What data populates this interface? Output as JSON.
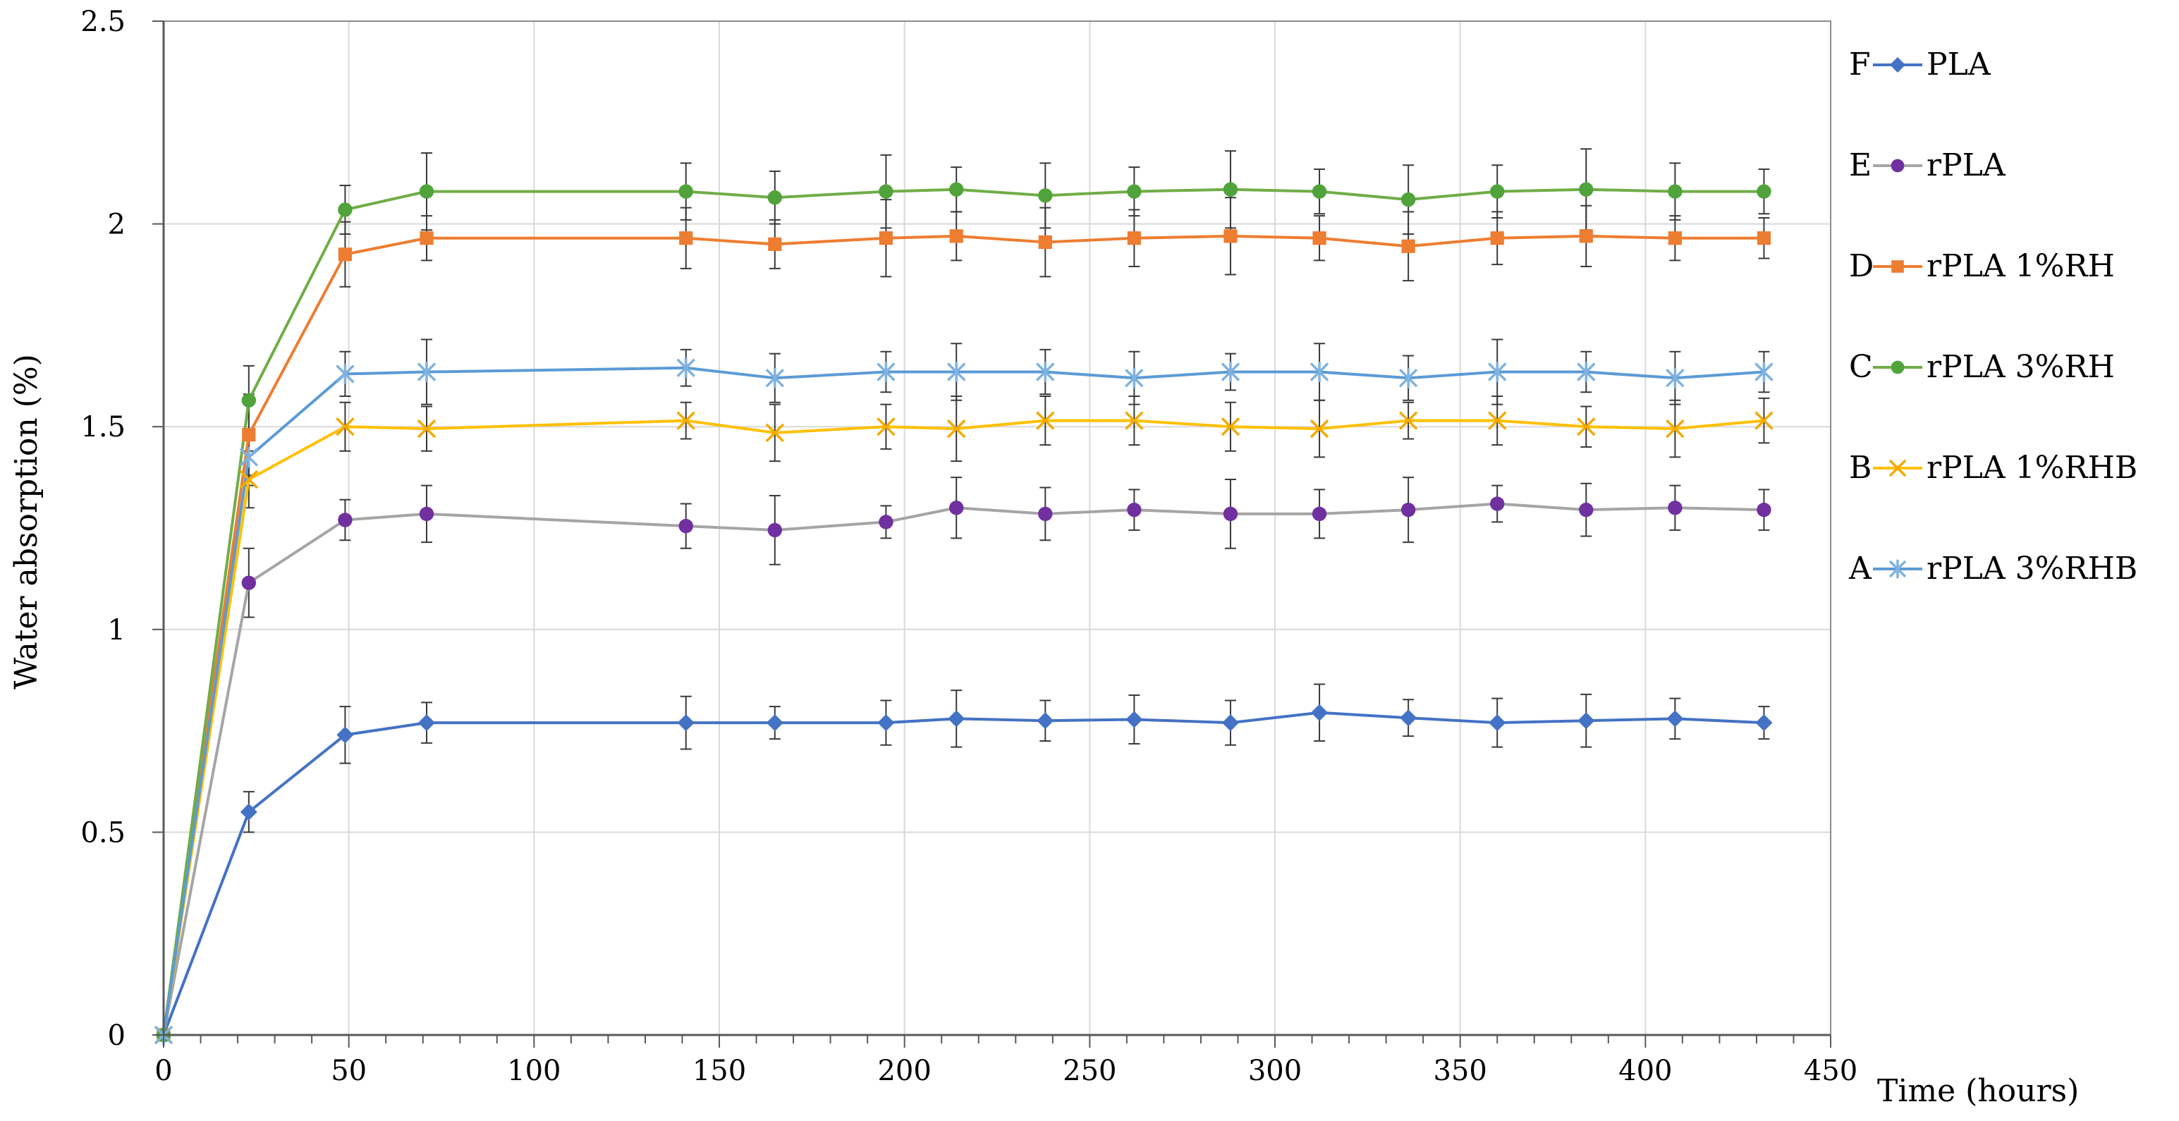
{
  "chart_data": {
    "type": "line",
    "xlabel": "Time (hours)",
    "ylabel": "Water absorption (%)",
    "xlim": [
      0,
      450
    ],
    "ylim": [
      0,
      2.5
    ],
    "x_ticks": [
      0,
      50,
      100,
      150,
      200,
      250,
      300,
      350,
      400,
      450
    ],
    "y_ticks": [
      0,
      0.5,
      1,
      1.5,
      2,
      2.5
    ],
    "y_tick_labels": [
      "0",
      "0.5",
      "1",
      "1.5",
      "2",
      "2.5"
    ],
    "grid": true,
    "legend_position": "right",
    "series": [
      {
        "letter": "F",
        "name": "PLA",
        "color": "#4472C4",
        "marker": "diamond",
        "x": [
          0,
          23,
          49,
          71,
          141,
          165,
          195,
          214,
          238,
          262,
          288,
          312,
          336,
          360,
          384,
          408,
          432
        ],
        "y": [
          0,
          0.55,
          0.74,
          0.77,
          0.77,
          0.77,
          0.77,
          0.78,
          0.775,
          0.778,
          0.77,
          0.795,
          0.782,
          0.77,
          0.775,
          0.78,
          0.77
        ],
        "err": [
          0,
          0.05,
          0.07,
          0.05,
          0.065,
          0.04,
          0.055,
          0.07,
          0.05,
          0.06,
          0.055,
          0.07,
          0.045,
          0.06,
          0.065,
          0.05,
          0.04
        ]
      },
      {
        "letter": "E",
        "name": "rPLA",
        "color": "#A5A5A5",
        "markerColor": "#7030A0",
        "marker": "circle",
        "x": [
          0,
          23,
          49,
          71,
          141,
          165,
          195,
          214,
          238,
          262,
          288,
          312,
          336,
          360,
          384,
          408,
          432
        ],
        "y": [
          0,
          1.115,
          1.27,
          1.285,
          1.255,
          1.245,
          1.265,
          1.3,
          1.285,
          1.295,
          1.285,
          1.285,
          1.295,
          1.31,
          1.295,
          1.3,
          1.295
        ],
        "err": [
          0,
          0.085,
          0.05,
          0.07,
          0.055,
          0.085,
          0.04,
          0.075,
          0.065,
          0.05,
          0.085,
          0.06,
          0.08,
          0.045,
          0.065,
          0.055,
          0.05
        ]
      },
      {
        "letter": "D",
        "name": "rPLA 1%RH",
        "color": "#ED7D31",
        "marker": "square",
        "x": [
          0,
          23,
          49,
          71,
          141,
          165,
          195,
          214,
          238,
          262,
          288,
          312,
          336,
          360,
          384,
          408,
          432
        ],
        "y": [
          0,
          1.48,
          1.925,
          1.965,
          1.965,
          1.95,
          1.965,
          1.97,
          1.955,
          1.965,
          1.97,
          1.965,
          1.945,
          1.965,
          1.97,
          1.965,
          1.965
        ],
        "err": [
          0,
          0.1,
          0.08,
          0.055,
          0.075,
          0.06,
          0.095,
          0.06,
          0.085,
          0.07,
          0.095,
          0.055,
          0.085,
          0.065,
          0.075,
          0.055,
          0.05
        ]
      },
      {
        "letter": "C",
        "name": "rPLA 3%RH",
        "color": "#70AD47",
        "markerColor": "#4FA33A",
        "marker": "circle",
        "x": [
          0,
          23,
          49,
          71,
          141,
          165,
          195,
          214,
          238,
          262,
          288,
          312,
          336,
          360,
          384,
          408,
          432
        ],
        "y": [
          0,
          1.565,
          2.035,
          2.08,
          2.08,
          2.065,
          2.08,
          2.085,
          2.07,
          2.08,
          2.085,
          2.08,
          2.06,
          2.08,
          2.085,
          2.08,
          2.08
        ],
        "err": [
          0,
          0.085,
          0.06,
          0.095,
          0.07,
          0.065,
          0.09,
          0.055,
          0.08,
          0.06,
          0.095,
          0.055,
          0.085,
          0.065,
          0.1,
          0.07,
          0.055
        ]
      },
      {
        "letter": "B",
        "name": "rPLA 1%RHB",
        "color": "#FFC000",
        "markerColor": "#F2A900",
        "marker": "x",
        "x": [
          0,
          23,
          49,
          71,
          141,
          165,
          195,
          214,
          238,
          262,
          288,
          312,
          336,
          360,
          384,
          408,
          432
        ],
        "y": [
          0,
          1.37,
          1.5,
          1.495,
          1.515,
          1.485,
          1.5,
          1.495,
          1.515,
          1.515,
          1.5,
          1.495,
          1.515,
          1.515,
          1.5,
          1.495,
          1.515
        ],
        "err": [
          0,
          0.07,
          0.06,
          0.055,
          0.045,
          0.07,
          0.055,
          0.08,
          0.06,
          0.06,
          0.06,
          0.07,
          0.045,
          0.06,
          0.05,
          0.07,
          0.055
        ]
      },
      {
        "letter": "A",
        "name": "rPLA 3%RHB",
        "color": "#5B9BD5",
        "markerColor": "#7FB2E0",
        "marker": "asterisk",
        "x": [
          0,
          23,
          49,
          71,
          141,
          165,
          195,
          214,
          238,
          262,
          288,
          312,
          336,
          360,
          384,
          408,
          432
        ],
        "y": [
          0,
          1.425,
          1.63,
          1.635,
          1.645,
          1.62,
          1.635,
          1.635,
          1.635,
          1.62,
          1.635,
          1.635,
          1.62,
          1.635,
          1.635,
          1.62,
          1.635
        ],
        "err": [
          0,
          0.07,
          0.055,
          0.08,
          0.045,
          0.06,
          0.05,
          0.07,
          0.055,
          0.065,
          0.045,
          0.07,
          0.055,
          0.08,
          0.05,
          0.065,
          0.05
        ]
      }
    ]
  }
}
